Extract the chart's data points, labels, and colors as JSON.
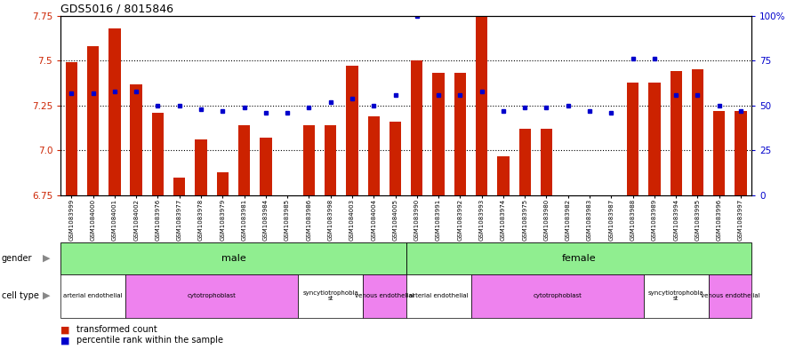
{
  "title": "GDS5016 / 8015846",
  "samples": [
    "GSM1083999",
    "GSM1084000",
    "GSM1084001",
    "GSM1084002",
    "GSM1083976",
    "GSM1083977",
    "GSM1083978",
    "GSM1083979",
    "GSM1083981",
    "GSM1083984",
    "GSM1083985",
    "GSM1083986",
    "GSM1083998",
    "GSM1084003",
    "GSM1084004",
    "GSM1084005",
    "GSM1083990",
    "GSM1083991",
    "GSM1083992",
    "GSM1083993",
    "GSM1083974",
    "GSM1083975",
    "GSM1083980",
    "GSM1083982",
    "GSM1083983",
    "GSM1083987",
    "GSM1083988",
    "GSM1083989",
    "GSM1083994",
    "GSM1083995",
    "GSM1083996",
    "GSM1083997"
  ],
  "bar_values": [
    7.49,
    7.58,
    7.68,
    7.37,
    7.21,
    6.85,
    7.06,
    6.88,
    7.14,
    7.07,
    6.65,
    7.14,
    7.14,
    7.47,
    7.19,
    7.16,
    7.5,
    7.43,
    7.43,
    7.83,
    6.97,
    7.12,
    7.12,
    6.72,
    6.68,
    6.67,
    7.38,
    7.38,
    7.44,
    7.45,
    7.22,
    7.22
  ],
  "dot_percentiles": [
    57,
    57,
    58,
    58,
    50,
    50,
    48,
    47,
    49,
    46,
    46,
    49,
    52,
    54,
    50,
    56,
    100,
    56,
    56,
    58,
    47,
    49,
    49,
    50,
    47,
    46,
    76,
    76,
    56,
    56,
    50,
    47
  ],
  "ylim": [
    6.75,
    7.75
  ],
  "yticks_left": [
    6.75,
    7.0,
    7.25,
    7.5,
    7.75
  ],
  "yticks_right": [
    0,
    25,
    50,
    75,
    100
  ],
  "bar_color": "#cc2200",
  "dot_color": "#0000cc",
  "bar_width": 0.55,
  "cell_type_groups": [
    {
      "label": "arterial endothelial",
      "start": 0,
      "end": 2,
      "color": "#ffffff"
    },
    {
      "label": "cytotrophoblast",
      "start": 3,
      "end": 10,
      "color": "#ee82ee"
    },
    {
      "label": "syncytiotrophoblast",
      "start": 11,
      "end": 13,
      "color": "#ffffff"
    },
    {
      "label": "venous endothelial",
      "start": 14,
      "end": 15,
      "color": "#ee82ee"
    },
    {
      "label": "arterial endothelial",
      "start": 16,
      "end": 18,
      "color": "#ffffff"
    },
    {
      "label": "cytotrophoblast",
      "start": 19,
      "end": 26,
      "color": "#ee82ee"
    },
    {
      "label": "syncytiotrophoblast",
      "start": 27,
      "end": 29,
      "color": "#ffffff"
    },
    {
      "label": "venous endothelial",
      "start": 30,
      "end": 31,
      "color": "#ee82ee"
    }
  ]
}
